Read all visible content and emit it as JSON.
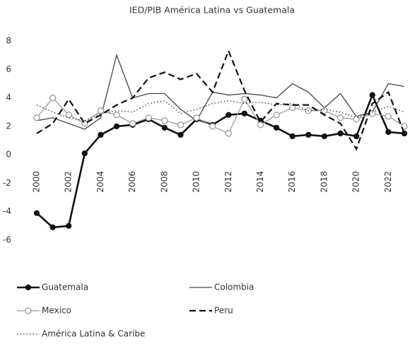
{
  "chart_data": {
    "type": "line",
    "title": "IED/PIB América Latina vs Guatemala",
    "categories": [
      "2000",
      null,
      "2002",
      null,
      "2004",
      null,
      "2006",
      null,
      "2008",
      null,
      "2010",
      null,
      "2012",
      null,
      "2014",
      null,
      "2016",
      null,
      "2018",
      null,
      "2020",
      null,
      "2022",
      null
    ],
    "ylim": [
      -6,
      8
    ],
    "yticks": [
      -6,
      -4,
      -2,
      0,
      2,
      4,
      6,
      8
    ],
    "grid": false,
    "legend": "bottom",
    "series": [
      {
        "name": "Guatemala",
        "color": "#111111",
        "dash": "solid",
        "marker": "filled-circle",
        "values": [
          -4.1,
          -5.1,
          -5.0,
          0.1,
          1.4,
          2.0,
          2.1,
          2.5,
          1.9,
          1.4,
          2.5,
          2.1,
          2.8,
          2.9,
          2.4,
          1.9,
          1.3,
          1.4,
          1.3,
          1.5,
          1.3,
          4.2,
          1.6,
          1.5
        ]
      },
      {
        "name": "Colombia",
        "color": "#444444",
        "dash": "solid",
        "marker": "none",
        "values": [
          2.4,
          2.6,
          2.2,
          1.8,
          2.6,
          7.0,
          4.0,
          4.3,
          4.3,
          3.2,
          2.4,
          4.4,
          4.2,
          4.3,
          4.2,
          4.0,
          5.0,
          4.4,
          3.3,
          4.3,
          2.7,
          3.0,
          5.0,
          4.8
        ]
      },
      {
        "name": "Mexico",
        "color": "#9a9a9a",
        "dash": "solid",
        "marker": "hollow-circle",
        "values": [
          2.6,
          4.0,
          2.8,
          2.2,
          3.1,
          2.8,
          2.2,
          2.6,
          2.4,
          2.1,
          2.6,
          2.0,
          1.5,
          3.9,
          2.1,
          2.8,
          3.3,
          3.1,
          3.1,
          2.6,
          2.5,
          2.9,
          2.7,
          2.0
        ]
      },
      {
        "name": "Peru",
        "color": "#111111",
        "dash": "dashed",
        "marker": "none",
        "values": [
          1.5,
          2.2,
          3.9,
          2.2,
          2.8,
          3.5,
          4.0,
          5.4,
          5.8,
          5.3,
          5.7,
          4.4,
          7.3,
          4.5,
          2.3,
          3.6,
          3.5,
          3.5,
          2.8,
          2.2,
          0.4,
          3.6,
          4.4,
          1.5
        ]
      },
      {
        "name": "América Latina & Caribe",
        "color": "#333333",
        "dash": "dotted",
        "marker": "none",
        "values": [
          3.5,
          3.0,
          2.6,
          2.4,
          2.9,
          3.1,
          3.0,
          3.6,
          3.8,
          2.9,
          3.2,
          3.6,
          3.8,
          3.6,
          3.7,
          3.5,
          3.6,
          3.1,
          3.2,
          3.0,
          2.6,
          3.0,
          3.4,
          3.0
        ]
      }
    ]
  }
}
